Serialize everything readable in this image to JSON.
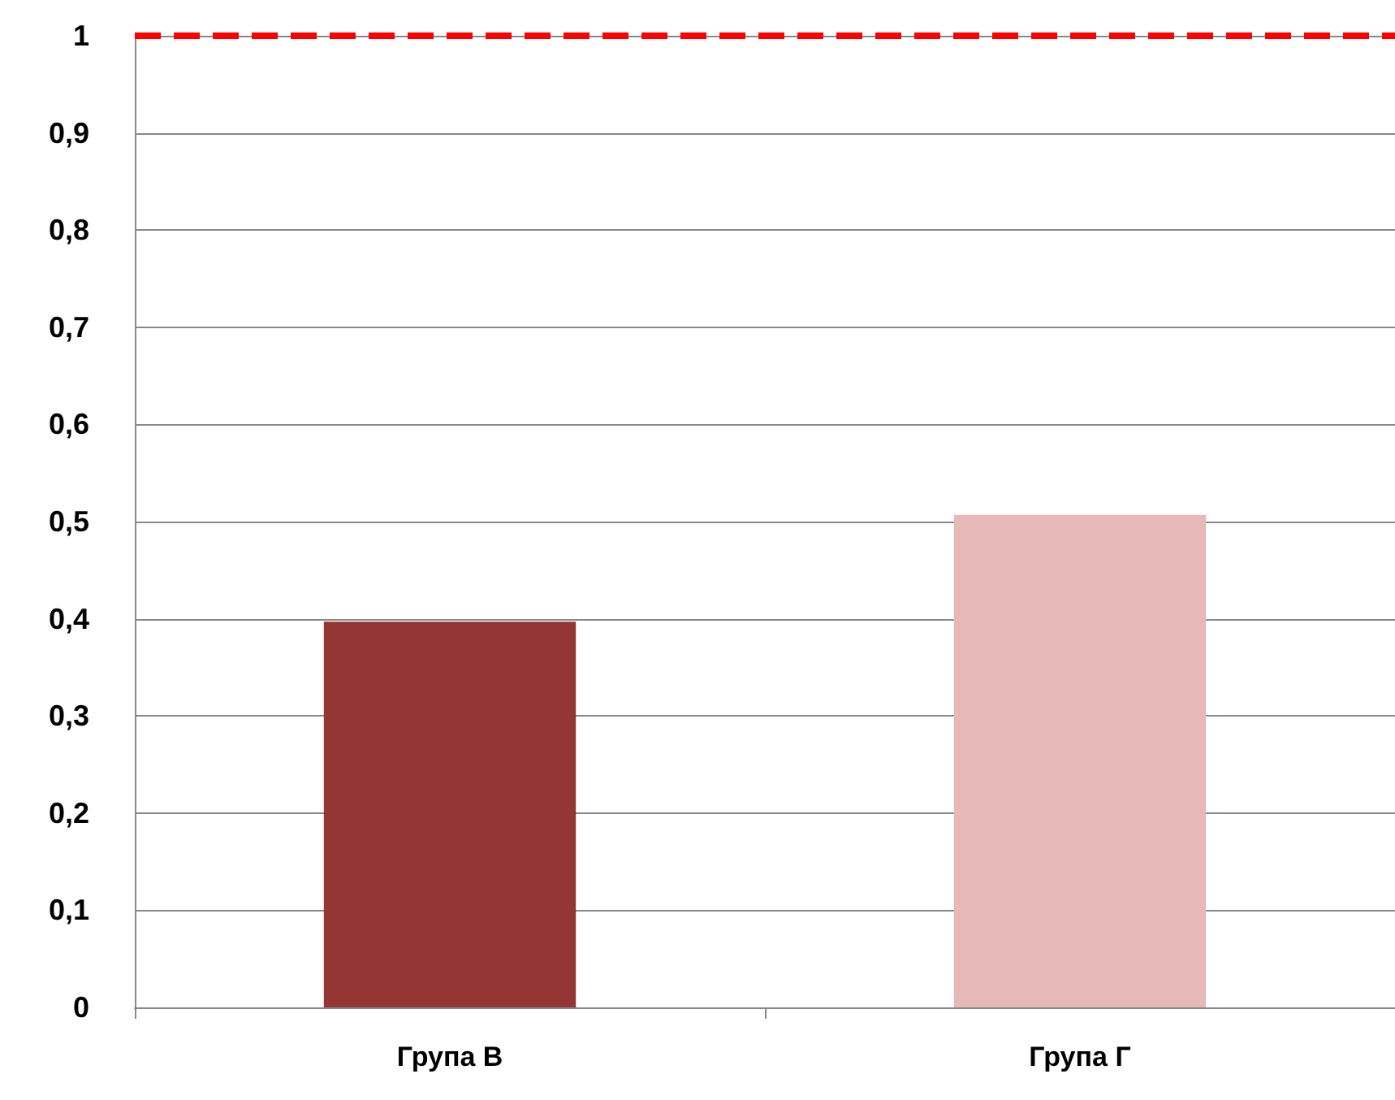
{
  "chart_data": {
    "type": "bar",
    "categories": [
      "Група В",
      "Група Г"
    ],
    "values": [
      0.397,
      0.507
    ],
    "colors": [
      "#943634",
      "#e6b8b7"
    ],
    "ylim": [
      0,
      1
    ],
    "yticks": [
      {
        "value": 0,
        "label": "0"
      },
      {
        "value": 0.1,
        "label": "0,1"
      },
      {
        "value": 0.2,
        "label": "0,2"
      },
      {
        "value": 0.3,
        "label": "0,3"
      },
      {
        "value": 0.4,
        "label": "0,4"
      },
      {
        "value": 0.5,
        "label": "0,5"
      },
      {
        "value": 0.6,
        "label": "0,6"
      },
      {
        "value": 0.7,
        "label": "0,7"
      },
      {
        "value": 0.8,
        "label": "0,8"
      },
      {
        "value": 0.9,
        "label": "0,9"
      },
      {
        "value": 1,
        "label": "1"
      }
    ],
    "grid": "y",
    "ref_lines": [
      {
        "axis": "y",
        "value": 1,
        "color": "#ff0000",
        "line_style": "dashed"
      }
    ]
  }
}
